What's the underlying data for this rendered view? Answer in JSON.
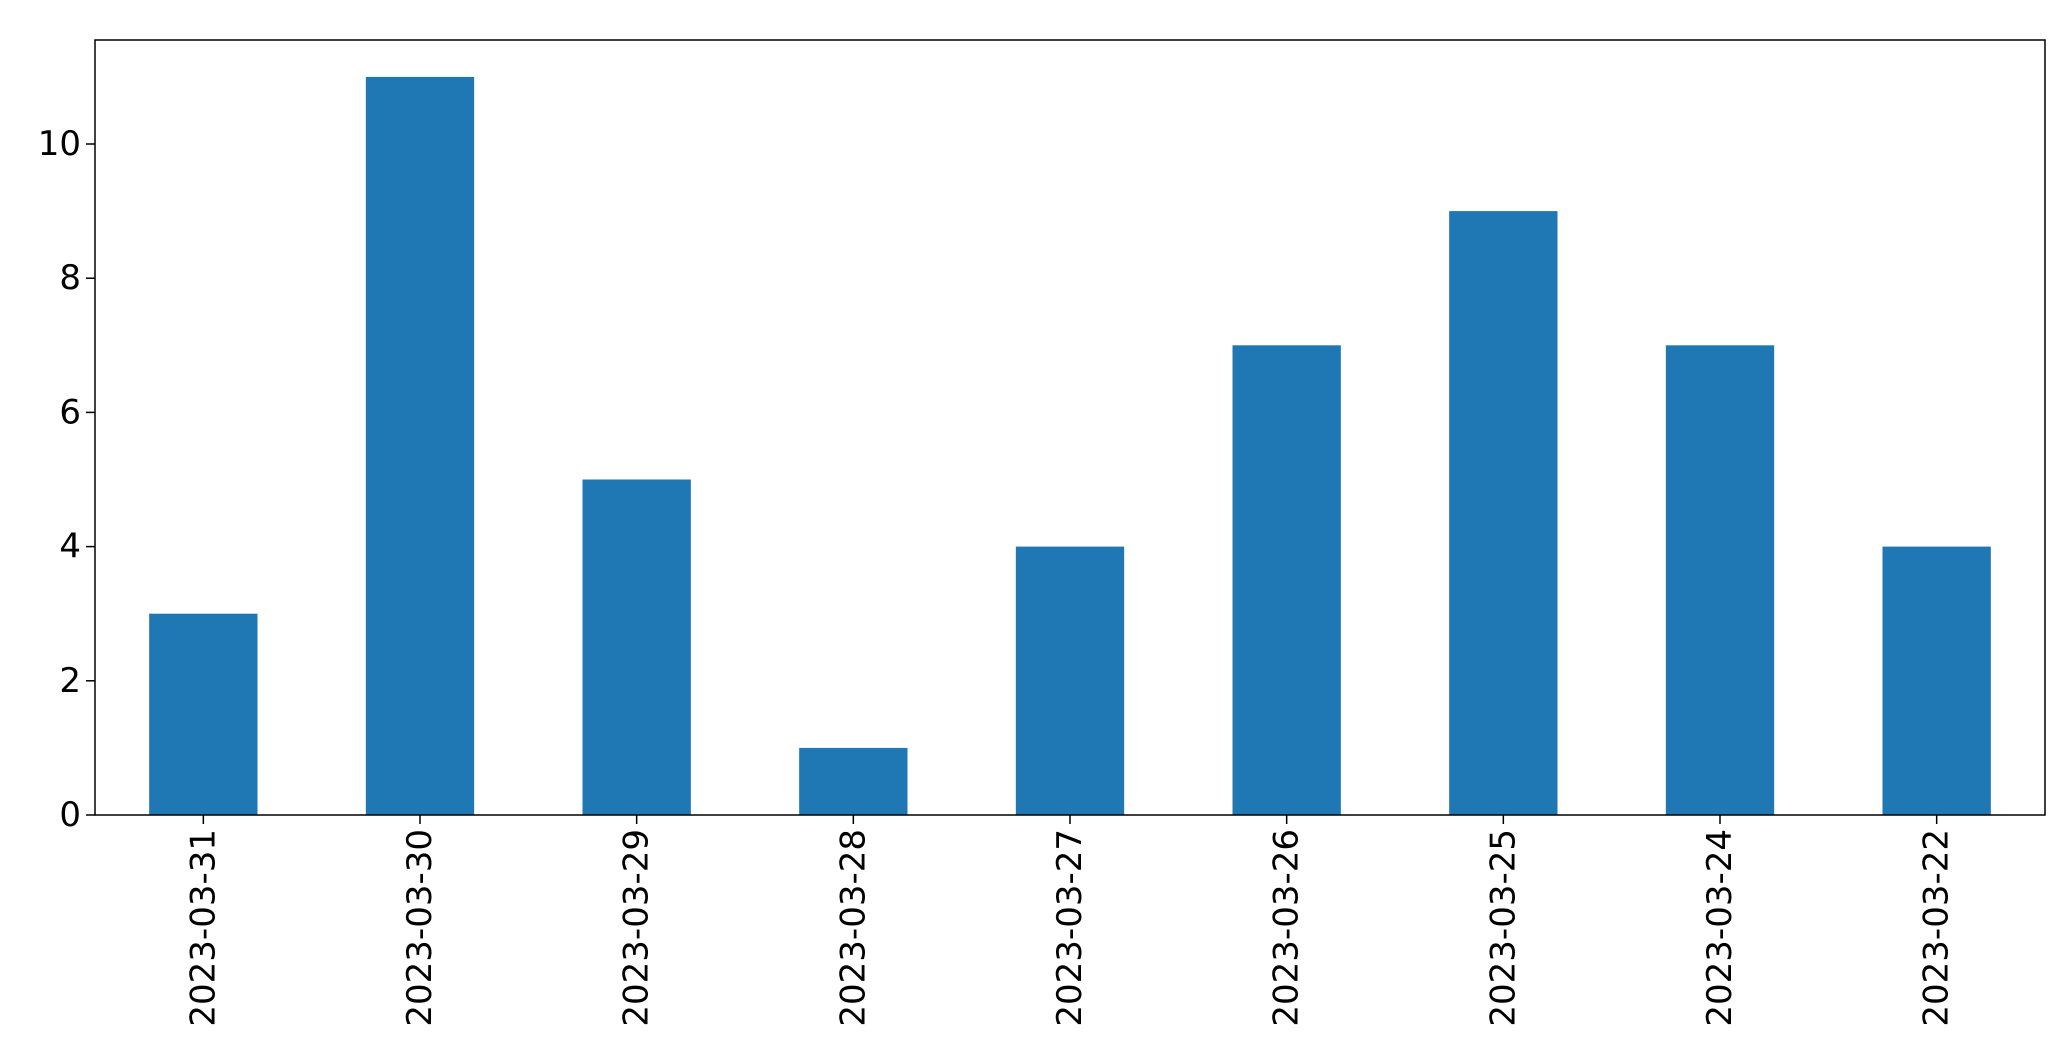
{
  "chart_data": {
    "type": "bar",
    "categories": [
      "2023-03-31",
      "2023-03-30",
      "2023-03-29",
      "2023-03-28",
      "2023-03-27",
      "2023-03-26",
      "2023-03-25",
      "2023-03-24",
      "2023-03-22"
    ],
    "values": [
      3,
      11,
      5,
      1,
      4,
      7,
      9,
      7,
      4
    ],
    "title": "",
    "xlabel": "",
    "ylabel": "",
    "ylim": [
      0,
      11.55
    ],
    "yticks": [
      0,
      2,
      4,
      6,
      8,
      10
    ],
    "grid": false,
    "legend": "none",
    "bar_color": "#1f77b4",
    "axis_color": "#000000",
    "background": "#ffffff"
  }
}
